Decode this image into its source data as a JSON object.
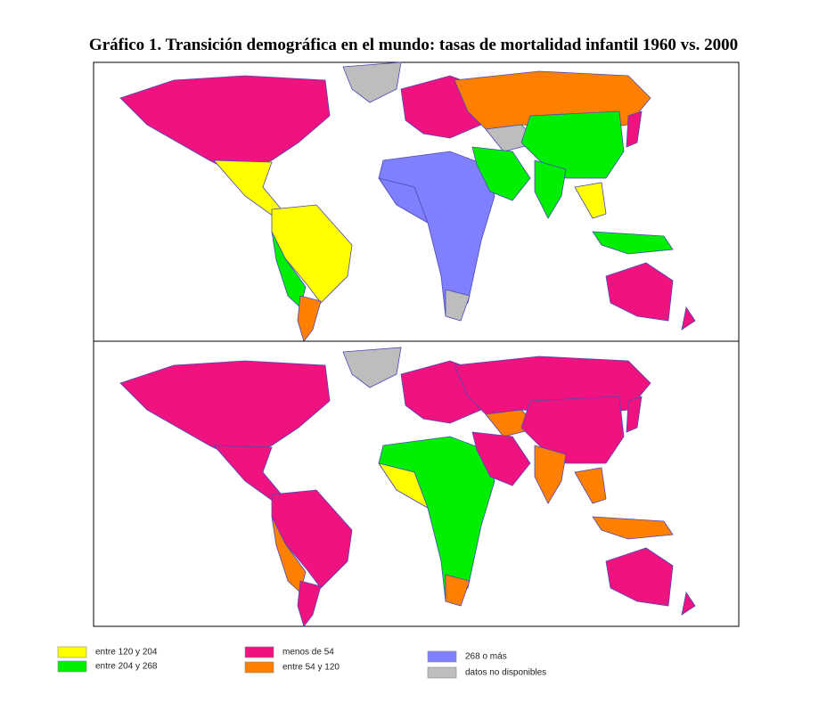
{
  "title": "Gráfico 1. Transición demográfica en el mundo: tasas de mortalidad infantil 1960 vs. 2000",
  "legend": [
    {
      "label": "entre 120 y 204",
      "color": "#ffff00"
    },
    {
      "label": "entre 204 y 268",
      "color": "#00ee00"
    },
    {
      "label": "menos de 54",
      "color": "#f0127f"
    },
    {
      "label": "entre 54 y 120",
      "color": "#ff8000"
    },
    {
      "label": "268 o más",
      "color": "#8080ff"
    },
    {
      "label": "datos no disponibles",
      "color": "#bdbdbd"
    }
  ]
}
